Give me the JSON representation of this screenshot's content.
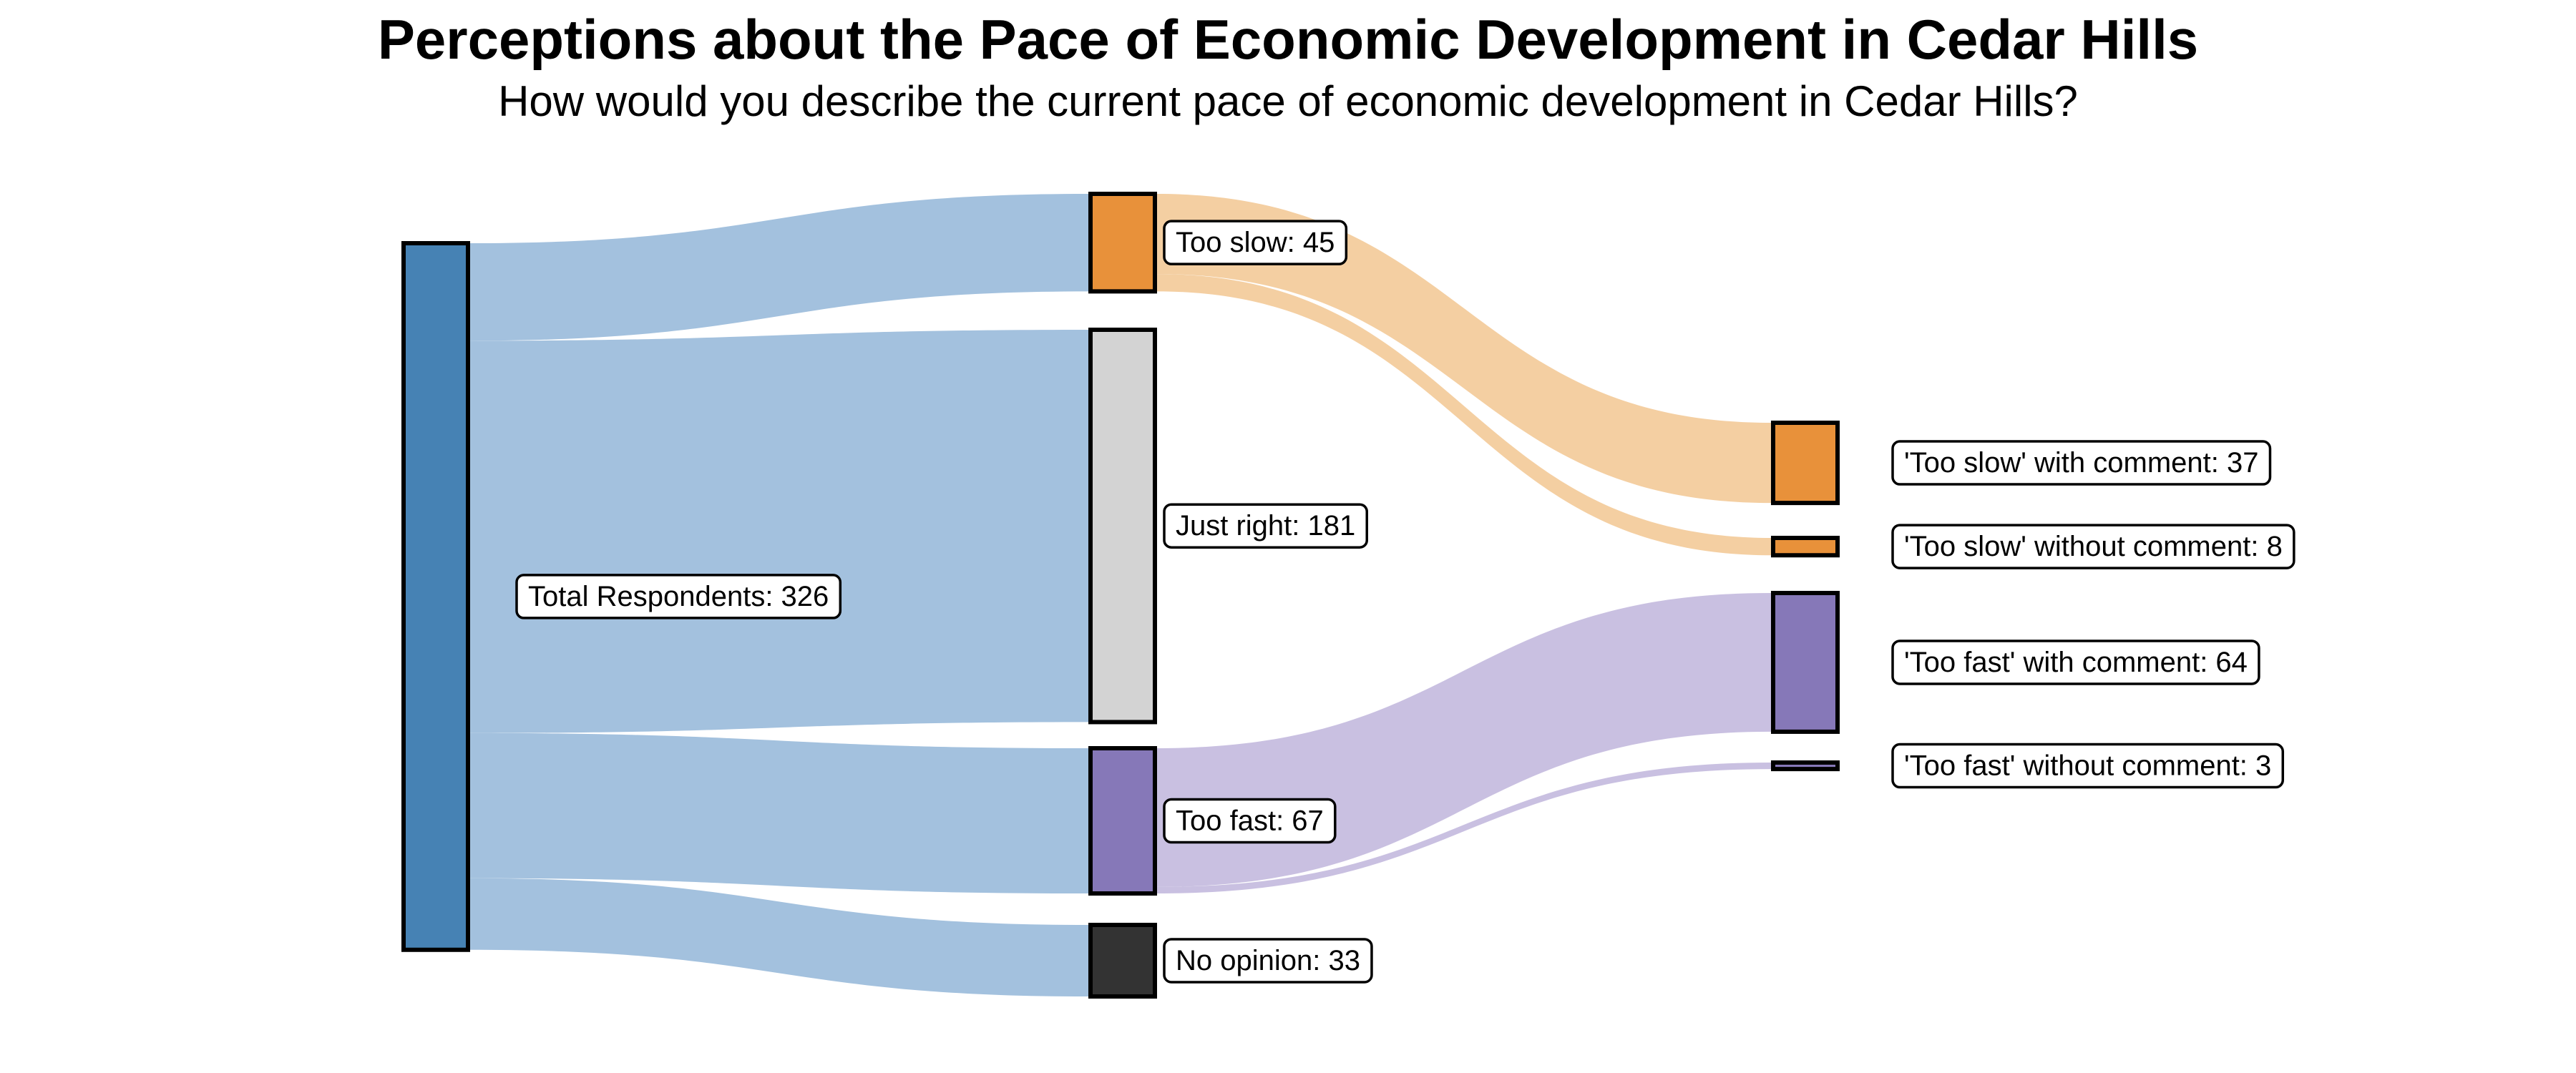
{
  "chart_data": {
    "type": "sankey",
    "title": "Perceptions about the Pace of Economic Development in Cedar Hills",
    "subtitle": "How would you describe the current pace of economic development in Cedar Hills?",
    "background_color": "#ffffff",
    "total_respondents": 326,
    "nodes": [
      {
        "id": "total",
        "label": "Total Respondents: 326",
        "value": 326,
        "column": 0,
        "color": "#4682b4"
      },
      {
        "id": "too_slow",
        "label": "Too slow: 45",
        "value": 45,
        "column": 1,
        "color": "#e8913a"
      },
      {
        "id": "just_right",
        "label": "Just right: 181",
        "value": 181,
        "column": 1,
        "color": "#d3d3d3"
      },
      {
        "id": "too_fast",
        "label": "Too fast: 67",
        "value": 67,
        "column": 1,
        "color": "#8678b8"
      },
      {
        "id": "no_opinion",
        "label": "No opinion: 33",
        "value": 33,
        "column": 1,
        "color": "#333333"
      },
      {
        "id": "slow_with",
        "label": "'Too slow' with comment: 37",
        "value": 37,
        "column": 2,
        "color": "#e8913a"
      },
      {
        "id": "slow_without",
        "label": "'Too slow' without comment: 8",
        "value": 8,
        "column": 2,
        "color": "#e8913a"
      },
      {
        "id": "fast_with",
        "label": "'Too fast' with comment: 64",
        "value": 64,
        "column": 2,
        "color": "#8678b8"
      },
      {
        "id": "fast_without",
        "label": "'Too fast' without comment: 3",
        "value": 3,
        "column": 2,
        "color": "#8678b8"
      }
    ],
    "links": [
      {
        "source": "total",
        "target": "too_slow",
        "value": 45,
        "color": "#a3c1de"
      },
      {
        "source": "total",
        "target": "just_right",
        "value": 181,
        "color": "#a3c1de"
      },
      {
        "source": "total",
        "target": "too_fast",
        "value": 67,
        "color": "#a3c1de"
      },
      {
        "source": "total",
        "target": "no_opinion",
        "value": 33,
        "color": "#a3c1de"
      },
      {
        "source": "too_slow",
        "target": "slow_with",
        "value": 37,
        "color": "#f4cfa2"
      },
      {
        "source": "too_slow",
        "target": "slow_without",
        "value": 8,
        "color": "#f4cfa2"
      },
      {
        "source": "too_fast",
        "target": "fast_with",
        "value": 64,
        "color": "#c9c0e1"
      },
      {
        "source": "too_fast",
        "target": "fast_without",
        "value": 3,
        "color": "#c9c0e1"
      }
    ]
  }
}
